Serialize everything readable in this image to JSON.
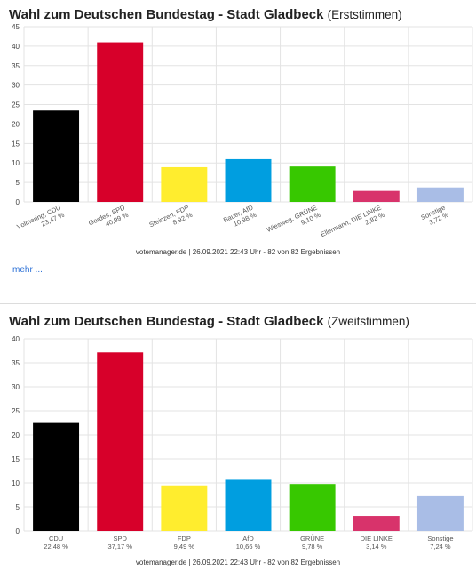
{
  "charts": [
    {
      "title": "Wahl zum Deutschen Bundestag - Stadt Gladbeck",
      "subtitle": "(Erststimmen)",
      "footer": "votemanager.de | 26.09.2021 22:43 Uhr - 82 von 82 Ergebnissen",
      "more_link": "mehr ..."
    },
    {
      "title": "Wahl zum Deutschen Bundestag - Stadt Gladbeck",
      "subtitle": "(Zweitstimmen)",
      "footer": "votemanager.de | 26.09.2021 22:43 Uhr - 82 von 82 Ergebnissen"
    }
  ],
  "chart_data": [
    {
      "type": "bar",
      "title": "Wahl zum Deutschen Bundestag - Stadt Gladbeck (Erststimmen)",
      "xlabel": "",
      "ylabel": "",
      "ylim": [
        0,
        45
      ],
      "yticks": [
        0,
        5,
        10,
        15,
        20,
        25,
        30,
        35,
        40,
        45
      ],
      "grid": true,
      "label_style": "rotated",
      "categories": [
        "Volmering, CDU",
        "Gerdes, SPD",
        "Steinzen, FDP",
        "Bauer, AfD",
        "Wiesweg, GRÜNE",
        "Ellermann, DIE LINKE",
        "Sonstige"
      ],
      "value_labels": [
        "23,47 %",
        "40,99 %",
        "8,92 %",
        "10,98 %",
        "9,10 %",
        "2,82 %",
        "3,72 %"
      ],
      "values": [
        23.47,
        40.99,
        8.92,
        10.98,
        9.1,
        2.82,
        3.72
      ],
      "colors": [
        "#000000",
        "#d7002a",
        "#ffed2e",
        "#009ee0",
        "#37c800",
        "#d8336b",
        "#a9bde6"
      ]
    },
    {
      "type": "bar",
      "title": "Wahl zum Deutschen Bundestag - Stadt Gladbeck (Zweitstimmen)",
      "xlabel": "",
      "ylabel": "",
      "ylim": [
        0,
        40
      ],
      "yticks": [
        0,
        5,
        10,
        15,
        20,
        25,
        30,
        35,
        40
      ],
      "grid": true,
      "label_style": "horizontal",
      "categories": [
        "CDU",
        "SPD",
        "FDP",
        "AfD",
        "GRÜNE",
        "DIE LINKE",
        "Sonstige"
      ],
      "value_labels": [
        "22,48 %",
        "37,17 %",
        "9,49 %",
        "10,66 %",
        "9,78 %",
        "3,14 %",
        "7,24 %"
      ],
      "values": [
        22.48,
        37.17,
        9.49,
        10.66,
        9.78,
        3.14,
        7.24
      ],
      "colors": [
        "#000000",
        "#d7002a",
        "#ffed2e",
        "#009ee0",
        "#37c800",
        "#d8336b",
        "#a9bde6"
      ]
    }
  ]
}
